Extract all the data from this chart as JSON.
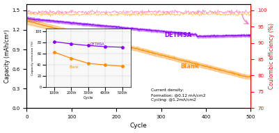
{
  "title": "",
  "xlabel": "Cycle",
  "ylabel_left": "Capacity (mAh/cm²)",
  "ylabel_right": "Coulombic efficiency (%)",
  "xlim": [
    0,
    500
  ],
  "ylim_left": [
    0.0,
    1.6
  ],
  "ylim_right": [
    70,
    102
  ],
  "yticks_left": [
    0.0,
    0.3,
    0.6,
    0.9,
    1.2,
    1.5
  ],
  "yticks_right": [
    70,
    75,
    80,
    85,
    90,
    95,
    100
  ],
  "xticks": [
    0,
    100,
    200,
    300,
    400,
    500
  ],
  "detmsa_color": "#8B00FF",
  "blank_color": "#FF8C00",
  "detmsa_ce_color": "#FF69B4",
  "blank_ce_color": "#FFA500",
  "inset_detmsa_x": [
    1,
    2,
    3,
    4,
    5
  ],
  "inset_detmsa_y": [
    82,
    78,
    75,
    73,
    72
  ],
  "inset_blank_x": [
    1,
    2,
    3,
    4,
    5
  ],
  "inset_blank_y": [
    63,
    52,
    43,
    40,
    38
  ],
  "inset_xticklabels": [
    "100th",
    "200th",
    "300th",
    "400th",
    "500th"
  ],
  "annotation_text": "Current density:\nFormation: @0.12 mA/cm2\nCycling: @1.2mA/cm2",
  "bg_color": "#ffffff"
}
